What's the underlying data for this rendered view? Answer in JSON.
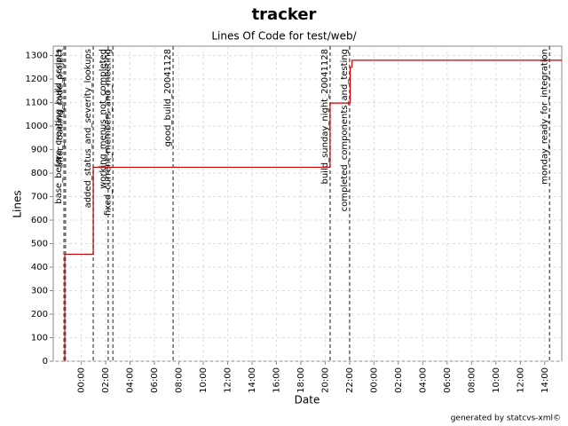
{
  "chart_data": {
    "type": "step",
    "title": "tracker",
    "subtitle": "Lines Of Code for test/web/",
    "x_label": "Date",
    "y_label": "Lines",
    "footer": "generated by statcvs-xml©",
    "x": [
      -1.4,
      -1.35,
      0.98,
      20.4,
      22.05,
      22.2
    ],
    "series": [
      {
        "name": "Lines",
        "color": "#cc0000",
        "values": [
          0,
          455,
          825,
          1098,
          1250,
          1280
        ]
      }
    ],
    "markers": [
      {
        "label": "base_before_creating_build_scripts",
        "x": -1.42
      },
      {
        "label": "after_loading_code_project",
        "x": -1.3
      },
      {
        "label": "added_status_and_severity_lookups",
        "x": 0.98
      },
      {
        "label": "working_menus_not_completed",
        "x": 2.2
      },
      {
        "label": "fixed_current_members_and_meeting",
        "x": 2.6
      },
      {
        "label": "good_build_20041128",
        "x": 7.53
      },
      {
        "label": "build_sunday_night_20041128",
        "x": 20.4
      },
      {
        "label": "completed_components_and_testing",
        "x": 22.0
      },
      {
        "label": "monday_ready_for_integration",
        "x": 38.4
      }
    ],
    "marker_color": "#666666",
    "xlim": [
      -2.3,
      39.4
    ],
    "xticks": [
      {
        "value": 0,
        "label": "00:00"
      },
      {
        "value": 2,
        "label": "02:00"
      },
      {
        "value": 4,
        "label": "04:00"
      },
      {
        "value": 6,
        "label": "06:00"
      },
      {
        "value": 8,
        "label": "08:00"
      },
      {
        "value": 10,
        "label": "10:00"
      },
      {
        "value": 12,
        "label": "12:00"
      },
      {
        "value": 14,
        "label": "14:00"
      },
      {
        "value": 16,
        "label": "16:00"
      },
      {
        "value": 18,
        "label": "18:00"
      },
      {
        "value": 20,
        "label": "20:00"
      },
      {
        "value": 22,
        "label": "22:00"
      },
      {
        "value": 24,
        "label": "00:00"
      },
      {
        "value": 26,
        "label": "02:00"
      },
      {
        "value": 28,
        "label": "04:00"
      },
      {
        "value": 30,
        "label": "06:00"
      },
      {
        "value": 32,
        "label": "08:00"
      },
      {
        "value": 34,
        "label": "10:00"
      },
      {
        "value": 36,
        "label": "12:00"
      },
      {
        "value": 38,
        "label": "14:00"
      }
    ],
    "ylim": [
      0,
      1340
    ],
    "yticks": [
      0,
      100,
      200,
      300,
      400,
      500,
      600,
      700,
      800,
      900,
      1000,
      1100,
      1200,
      1300
    ],
    "grid": true
  }
}
